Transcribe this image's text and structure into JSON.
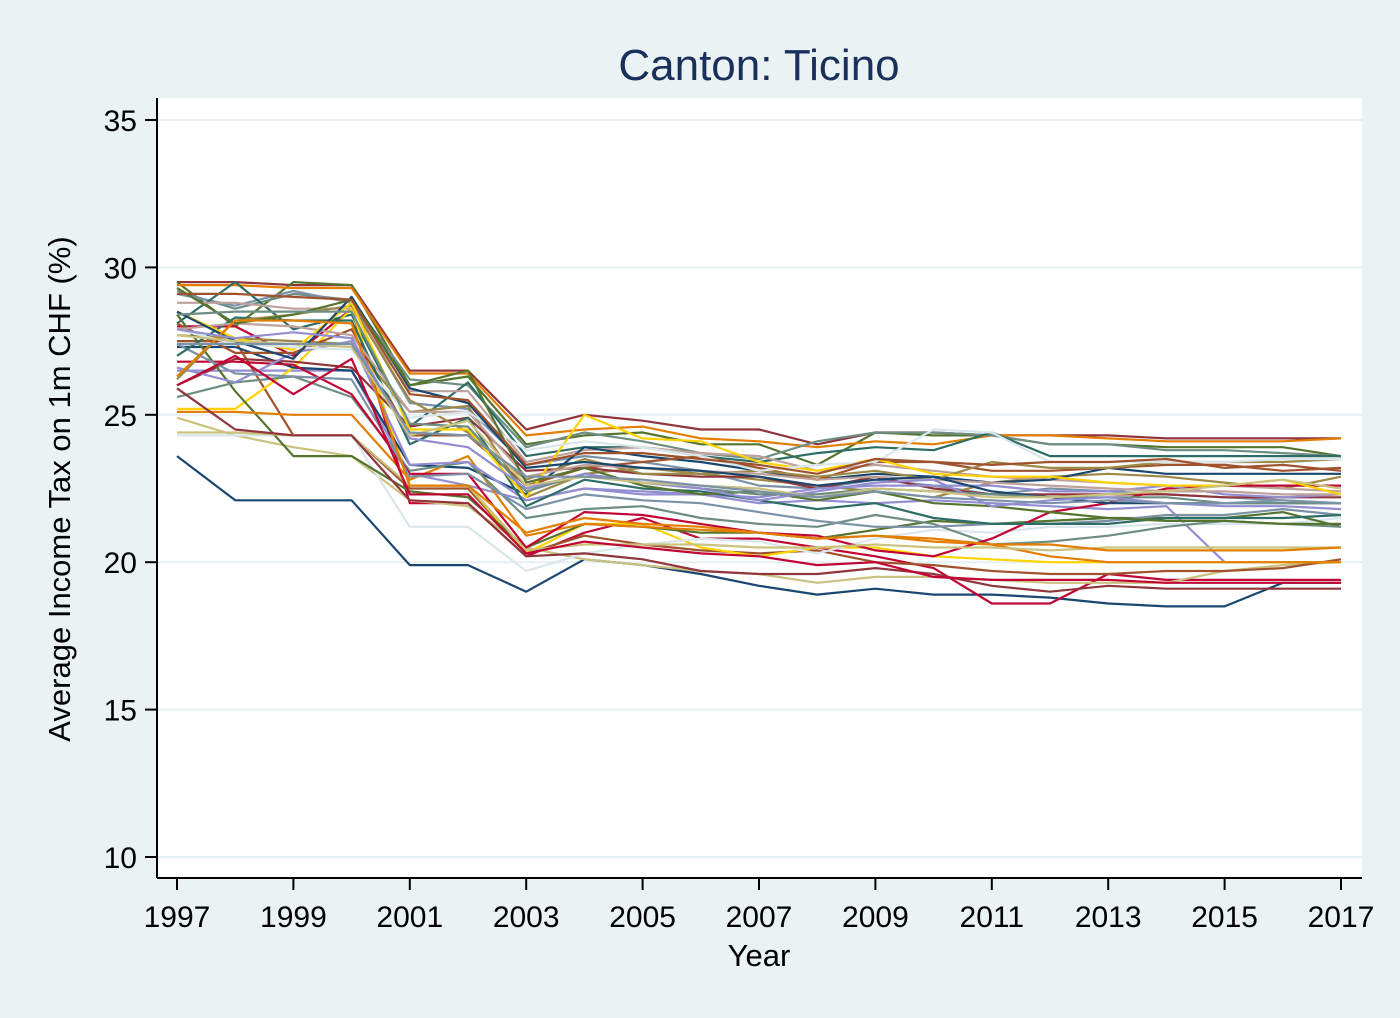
{
  "chart_data": {
    "type": "line",
    "title": "Canton: Ticino",
    "xlabel": "Year",
    "ylabel": "Average Income Tax on 1m CHF (%)",
    "xlim": [
      1997,
      2017
    ],
    "ylim": [
      10,
      35
    ],
    "x_ticks": [
      "1997",
      "1999",
      "2001",
      "2003",
      "2005",
      "2007",
      "2009",
      "2011",
      "2013",
      "2015",
      "2017"
    ],
    "y_ticks": [
      "10",
      "15",
      "20",
      "25",
      "30",
      "35"
    ],
    "grid": true,
    "legend": "none",
    "x": [
      1997,
      1998,
      1999,
      2000,
      2001,
      2002,
      2003,
      2004,
      2005,
      2006,
      2007,
      2008,
      2009,
      2010,
      2011,
      2012,
      2013,
      2014,
      2015,
      2016,
      2017
    ],
    "series": [
      {
        "color": "#1a476f",
        "values": [
          23.6,
          22.1,
          22.1,
          22.1,
          19.9,
          19.9,
          19.0,
          20.1,
          19.9,
          19.6,
          19.2,
          18.9,
          19.1,
          18.9,
          18.9,
          18.8,
          18.6,
          18.5,
          18.5,
          19.3,
          19.3
        ]
      },
      {
        "color": "#90353b",
        "values": [
          29.5,
          29.5,
          29.4,
          29.4,
          26.5,
          26.5,
          24.5,
          25.0,
          24.8,
          24.5,
          24.5,
          24.0,
          24.4,
          24.4,
          24.3,
          24.3,
          24.3,
          24.2,
          24.2,
          24.2,
          24.2
        ]
      },
      {
        "color": "#55752f",
        "values": [
          29.5,
          28.0,
          29.5,
          29.4,
          26.0,
          26.3,
          24.0,
          24.3,
          24.4,
          24.0,
          24.0,
          23.3,
          24.4,
          24.3,
          24.3,
          24.0,
          24.0,
          23.9,
          23.9,
          23.9,
          23.6
        ]
      },
      {
        "color": "#e37e00",
        "values": [
          29.4,
          29.4,
          29.3,
          29.3,
          26.4,
          26.4,
          24.3,
          24.5,
          24.6,
          24.2,
          24.1,
          23.9,
          24.1,
          24.0,
          24.3,
          24.3,
          24.2,
          24.1,
          24.1,
          24.1,
          24.2
        ]
      },
      {
        "color": "#6e8e84",
        "values": [
          29.2,
          28.6,
          29.1,
          28.9,
          26.2,
          26.0,
          23.9,
          24.4,
          24.1,
          23.7,
          23.5,
          24.1,
          24.4,
          24.4,
          24.3,
          24.0,
          24.0,
          23.8,
          23.8,
          23.7,
          23.6
        ]
      },
      {
        "color": "#c10534",
        "values": [
          28.0,
          28.0,
          27.0,
          28.6,
          22.0,
          22.0,
          20.2,
          21.0,
          21.5,
          20.8,
          20.8,
          20.5,
          20.2,
          19.8,
          18.6,
          18.6,
          19.6,
          19.4,
          19.4,
          19.4,
          19.4
        ]
      },
      {
        "color": "#938dd2",
        "values": [
          26.5,
          26.5,
          26.5,
          26.5,
          23.0,
          22.6,
          22.1,
          22.5,
          22.3,
          22.3,
          22.0,
          22.1,
          22.0,
          22.1,
          22.0,
          21.9,
          21.8,
          21.9,
          20.0,
          20.0,
          20.0
        ]
      },
      {
        "color": "#cac27e",
        "values": [
          24.9,
          24.3,
          23.9,
          23.6,
          22.1,
          21.9,
          20.5,
          20.1,
          19.9,
          19.7,
          19.6,
          19.3,
          19.5,
          19.5,
          19.4,
          19.3,
          19.3,
          19.3,
          19.7,
          19.9,
          20.0
        ]
      },
      {
        "color": "#a0522d",
        "values": [
          27.5,
          27.5,
          24.3,
          24.3,
          22.5,
          22.5,
          20.3,
          20.9,
          20.6,
          20.4,
          20.3,
          20.4,
          20.0,
          19.9,
          19.7,
          19.6,
          19.6,
          19.7,
          19.7,
          19.8,
          20.1
        ]
      },
      {
        "color": "#7b92a8",
        "values": [
          29.1,
          28.7,
          29.2,
          28.8,
          25.4,
          25.2,
          23.3,
          23.6,
          23.4,
          23.1,
          22.6,
          22.5,
          22.8,
          22.6,
          22.3,
          22.5,
          22.4,
          22.3,
          22.2,
          22.1,
          22.0
        ]
      },
      {
        "color": "#2d6d66",
        "values": [
          28.1,
          29.5,
          27.9,
          28.4,
          24.6,
          26.1,
          23.6,
          23.9,
          23.9,
          23.6,
          23.4,
          23.7,
          23.9,
          23.8,
          24.4,
          23.6,
          23.6,
          23.6,
          23.6,
          23.6,
          23.6
        ]
      },
      {
        "color": "#9c8847",
        "values": [
          27.7,
          27.6,
          27.5,
          27.4,
          25.1,
          25.3,
          22.2,
          23.0,
          23.2,
          23.0,
          22.8,
          22.6,
          22.4,
          22.2,
          22.7,
          22.9,
          23.0,
          22.9,
          22.7,
          22.5,
          22.9
        ]
      },
      {
        "color": "#bfa19c",
        "values": [
          28.8,
          28.8,
          28.6,
          28.6,
          25.8,
          25.8,
          23.4,
          23.8,
          23.9,
          23.7,
          23.6,
          23.1,
          23.3,
          23.1,
          22.9,
          22.8,
          22.7,
          22.6,
          22.6,
          22.5,
          22.4
        ]
      },
      {
        "color": "#ffd200",
        "values": [
          25.2,
          25.2,
          26.6,
          28.6,
          22.6,
          22.6,
          20.3,
          21.3,
          21.3,
          20.5,
          20.2,
          20.5,
          20.5,
          20.2,
          20.1,
          20.0,
          20.0,
          20.0,
          20.0,
          20.0,
          20.0
        ]
      },
      {
        "color": "#d9e6eb",
        "values": [
          24.3,
          24.3,
          24.3,
          24.3,
          21.2,
          21.2,
          19.7,
          20.3,
          20.6,
          20.8,
          20.7,
          20.3,
          20.8,
          21.1,
          21.0,
          21.2,
          21.2,
          21.3,
          21.3,
          21.3,
          21.5
        ]
      },
      {
        "color": "#1a476f",
        "values": [
          27.3,
          27.3,
          26.6,
          26.5,
          23.3,
          23.2,
          22.3,
          23.9,
          23.6,
          23.4,
          23.1,
          22.8,
          23.0,
          22.9,
          22.7,
          22.8,
          23.2,
          23.0,
          23.0,
          23.0,
          23.0
        ]
      },
      {
        "color": "#90353b",
        "values": [
          26.0,
          26.9,
          26.8,
          26.6,
          24.6,
          24.9,
          23.1,
          23.2,
          23.0,
          22.9,
          22.9,
          22.5,
          22.9,
          22.5,
          22.3,
          22.3,
          22.3,
          22.3,
          22.2,
          22.2,
          22.2
        ]
      },
      {
        "color": "#55752f",
        "values": [
          28.4,
          25.8,
          23.6,
          23.6,
          22.4,
          22.2,
          20.5,
          21.3,
          21.2,
          21.0,
          21.0,
          20.8,
          21.1,
          21.4,
          21.3,
          21.4,
          21.5,
          21.5,
          21.5,
          21.7,
          21.2
        ]
      },
      {
        "color": "#e37e00",
        "values": [
          25.1,
          25.1,
          25.0,
          25.0,
          22.8,
          23.6,
          20.9,
          21.3,
          21.2,
          21.1,
          21.0,
          20.8,
          20.9,
          20.7,
          20.6,
          20.2,
          20.0,
          20.0,
          20.0,
          20.0,
          20.0
        ]
      },
      {
        "color": "#6e8e84",
        "values": [
          25.6,
          26.1,
          26.3,
          25.6,
          23.1,
          23.4,
          21.5,
          21.8,
          21.9,
          21.5,
          21.3,
          21.2,
          21.6,
          21.3,
          20.6,
          20.7,
          20.9,
          21.2,
          21.4,
          21.3,
          21.2
        ]
      },
      {
        "color": "#c10534",
        "values": [
          26.8,
          26.8,
          26.7,
          25.7,
          23.0,
          23.0,
          20.5,
          21.7,
          21.6,
          21.3,
          21.0,
          20.9,
          20.4,
          20.2,
          20.8,
          21.7,
          22.0,
          22.5,
          22.6,
          22.6,
          22.6
        ]
      },
      {
        "color": "#938dd2",
        "values": [
          26.6,
          26.1,
          27.1,
          27.5,
          23.3,
          23.4,
          22.1,
          22.5,
          22.4,
          22.3,
          22.2,
          22.5,
          22.6,
          22.6,
          22.6,
          22.4,
          22.4,
          22.6,
          22.3,
          22.2,
          22.3
        ]
      },
      {
        "color": "#cac27e",
        "values": [
          24.4,
          24.4,
          24.3,
          24.3,
          22.6,
          22.6,
          20.4,
          20.6,
          20.6,
          20.6,
          20.5,
          20.5,
          20.6,
          20.5,
          20.5,
          20.4,
          20.5,
          20.5,
          20.5,
          20.5,
          20.5
        ]
      },
      {
        "color": "#a0522d",
        "values": [
          28.1,
          27.1,
          27.1,
          27.9,
          24.3,
          24.3,
          22.6,
          23.2,
          23.4,
          23.6,
          23.2,
          22.8,
          23.4,
          23.4,
          23.1,
          23.1,
          23.2,
          23.3,
          23.3,
          23.1,
          23.2
        ]
      },
      {
        "color": "#7b92a8",
        "values": [
          27.4,
          26.4,
          26.3,
          26.2,
          22.9,
          23.0,
          21.8,
          22.3,
          22.1,
          22.0,
          21.7,
          21.4,
          21.2,
          21.2,
          21.3,
          21.3,
          21.4,
          21.6,
          21.6,
          21.8,
          21.6
        ]
      },
      {
        "color": "#2d6d66",
        "values": [
          27.0,
          28.3,
          28.2,
          28.2,
          24.0,
          24.9,
          21.9,
          22.8,
          22.5,
          22.4,
          22.1,
          21.8,
          22.0,
          21.5,
          21.3,
          21.3,
          21.3,
          21.5,
          21.5,
          21.5,
          21.6
        ]
      },
      {
        "color": "#9c8847",
        "values": [
          26.2,
          28.2,
          28.4,
          28.7,
          25.5,
          24.4,
          22.8,
          23.5,
          23.0,
          23.0,
          23.1,
          22.9,
          23.1,
          22.8,
          23.4,
          23.2,
          23.2,
          23.4,
          23.4,
          23.4,
          23.5
        ]
      },
      {
        "color": "#bfa19c",
        "values": [
          27.9,
          28.1,
          28.0,
          27.7,
          25.1,
          25.1,
          22.9,
          23.3,
          23.2,
          23.1,
          23.0,
          22.8,
          22.9,
          22.8,
          22.7,
          22.6,
          22.5,
          22.4,
          22.4,
          22.3,
          22.3
        ]
      },
      {
        "color": "#ffd200",
        "values": [
          28.5,
          27.6,
          27.2,
          28.8,
          24.5,
          24.5,
          22.2,
          25.0,
          24.2,
          24.1,
          23.4,
          23.1,
          23.5,
          23.0,
          22.9,
          22.9,
          22.7,
          22.6,
          22.6,
          22.8,
          22.3
        ]
      },
      {
        "color": "#d9e6eb",
        "values": [
          27.9,
          27.4,
          27.3,
          27.2,
          24.9,
          25.1,
          23.8,
          24.1,
          23.9,
          23.6,
          23.1,
          23.3,
          23.4,
          24.5,
          24.4,
          23.4,
          23.4,
          23.4,
          23.4,
          23.5,
          23.5
        ]
      },
      {
        "color": "#1a476f",
        "values": [
          28.5,
          27.5,
          26.9,
          29.0,
          25.9,
          25.4,
          23.2,
          23.4,
          23.2,
          23.1,
          22.9,
          22.6,
          22.8,
          22.9,
          22.4,
          22.2,
          22.0,
          22.0,
          22.0,
          22.0,
          22.0
        ]
      },
      {
        "color": "#90353b",
        "values": [
          25.9,
          24.5,
          24.3,
          24.3,
          22.1,
          22.0,
          20.2,
          20.3,
          20.1,
          19.7,
          19.6,
          19.6,
          19.8,
          19.6,
          19.2,
          19.0,
          19.2,
          19.1,
          19.1,
          19.1,
          19.1
        ]
      },
      {
        "color": "#55752f",
        "values": [
          29.3,
          28.1,
          28.4,
          28.9,
          26.0,
          26.5,
          22.7,
          23.2,
          22.6,
          22.3,
          22.4,
          22.1,
          22.4,
          22.0,
          21.9,
          21.7,
          21.5,
          21.4,
          21.4,
          21.3,
          21.3
        ]
      },
      {
        "color": "#e37e00",
        "values": [
          26.3,
          28.2,
          28.2,
          28.1,
          22.6,
          22.6,
          21.0,
          21.5,
          21.3,
          21.2,
          21.0,
          20.8,
          20.9,
          20.8,
          20.6,
          20.6,
          20.4,
          20.4,
          20.4,
          20.4,
          20.5
        ]
      },
      {
        "color": "#6e8e84",
        "values": [
          28.4,
          28.5,
          28.5,
          28.5,
          24.7,
          24.6,
          22.4,
          23.0,
          22.7,
          22.5,
          22.3,
          22.3,
          22.5,
          22.4,
          22.3,
          22.2,
          22.2,
          22.2,
          22.0,
          22.0,
          22.0
        ]
      },
      {
        "color": "#c10534",
        "values": [
          26.0,
          27.0,
          25.7,
          26.9,
          22.3,
          22.3,
          20.3,
          20.7,
          20.5,
          20.3,
          20.2,
          19.9,
          20.0,
          19.5,
          19.4,
          19.4,
          19.4,
          19.3,
          19.3,
          19.3,
          19.3
        ]
      },
      {
        "color": "#938dd2",
        "values": [
          27.9,
          27.6,
          27.8,
          27.6,
          24.2,
          23.9,
          22.5,
          23.0,
          22.7,
          22.5,
          22.1,
          22.4,
          22.7,
          22.8,
          21.9,
          22.1,
          22.2,
          22.0,
          21.9,
          21.9,
          21.8
        ]
      },
      {
        "color": "#cac27e",
        "values": [
          27.7,
          27.5,
          27.4,
          27.3,
          24.3,
          24.8,
          22.6,
          22.9,
          22.7,
          22.6,
          22.5,
          22.2,
          22.5,
          22.4,
          22.2,
          22.2,
          22.3,
          22.4,
          22.6,
          22.8,
          22.5
        ]
      },
      {
        "color": "#a0522d",
        "values": [
          29.1,
          29.1,
          29.0,
          28.9,
          25.7,
          25.5,
          23.3,
          23.7,
          23.7,
          23.5,
          23.3,
          23.0,
          23.5,
          23.4,
          23.3,
          23.4,
          23.4,
          23.5,
          23.2,
          23.3,
          23.1
        ]
      },
      {
        "color": "#7b92a8",
        "values": [
          27.4,
          27.4,
          27.4,
          27.4,
          24.4,
          24.3,
          22.9,
          22.9,
          22.8,
          22.6,
          22.4,
          22.2,
          22.4,
          22.2,
          22.1,
          22.0,
          22.1,
          22.0,
          22.0,
          22.1,
          22.0
        ]
      }
    ]
  }
}
